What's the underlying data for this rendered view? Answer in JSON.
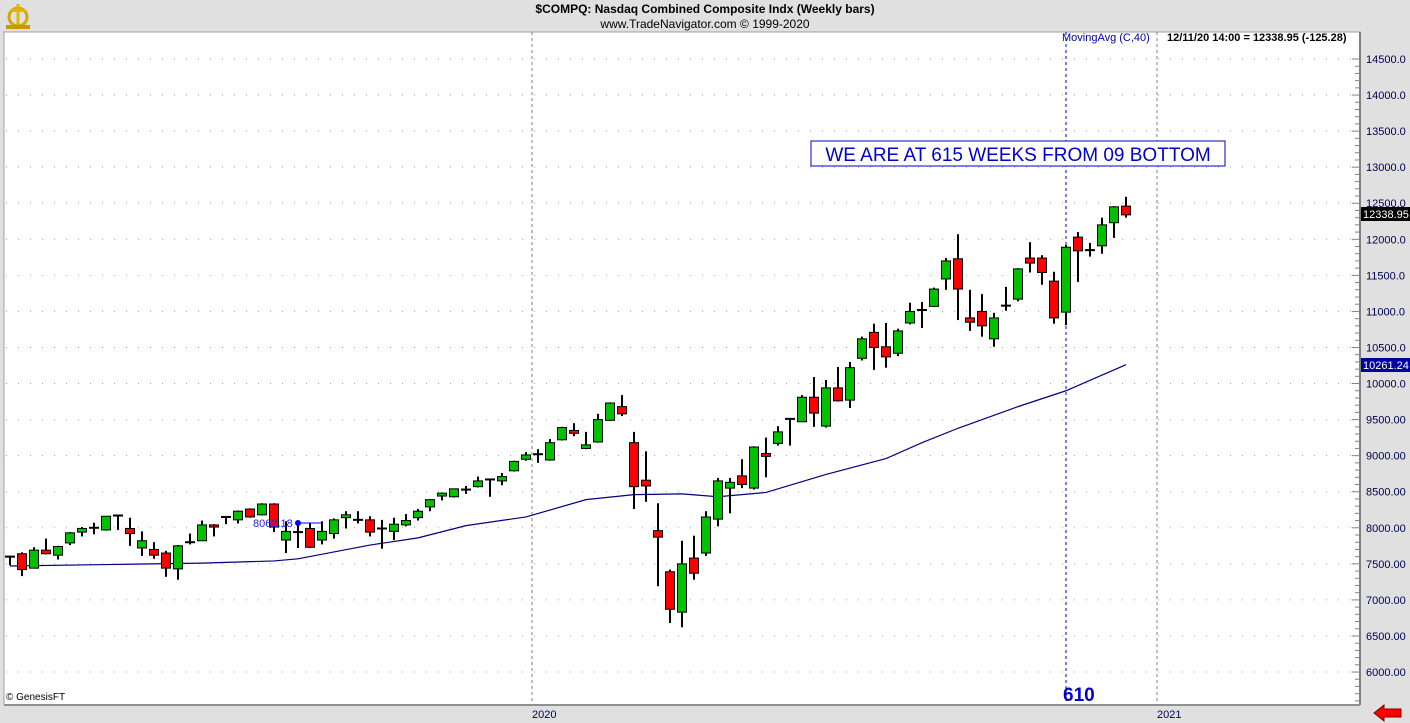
{
  "header": {
    "title": "$COMPQ:  Nasdaq Combined Composite Indx  (Weekly bars)",
    "subtitle": "www.TradeNavigator.com © 1999-2020",
    "logo": "anchor-compass-logo"
  },
  "indicator_label": "MovingAvg (C,40)",
  "last_bar_readout": "12/11/20 14:00 = 12338.95 (-125.28)",
  "annotation_box": "WE ARE AT 615 WEEKS FROM 09 BOTTOM",
  "marker_label": "610",
  "high_marker_label": "8062.18",
  "footer_credit": "© GenesisFT",
  "price_tags": {
    "last_close": "12338.95",
    "moving_average": "10261.24"
  },
  "colors": {
    "up": "#00c000",
    "down": "#ff0000",
    "ma": "#000080",
    "annotation": "#0000c8",
    "tag_ma_bg": "#0000a0",
    "tag_close_bg": "#000000"
  },
  "chart_data": {
    "type": "candlestick",
    "title": "$COMPQ:  Nasdaq Combined Composite Indx  (Weekly bars)",
    "xlabel": "",
    "ylabel": "",
    "ylim": [
      5800,
      14800
    ],
    "grid": true,
    "x_tick_labels": [
      "2020",
      "2021"
    ],
    "y_tick_labels": [
      "14500.0",
      "14000.0",
      "13500.0",
      "13000.0",
      "12500.0",
      "12000.0",
      "11500.0",
      "11000.0",
      "10500.0",
      "10000.0",
      "9500.00",
      "9000.00",
      "8500.00",
      "8000.00",
      "7500.00",
      "7000.00",
      "6500.00",
      "6000.00"
    ],
    "y_tick_values": [
      14500,
      14000,
      13500,
      13000,
      12500,
      12000,
      11500,
      11000,
      10500,
      10000,
      9500,
      9000,
      8500,
      8000,
      7500,
      7000,
      6500,
      6000
    ],
    "last_bar_date": "12/11/20",
    "ohlc_fields": [
      "open",
      "high",
      "low",
      "close"
    ],
    "candles": [
      [
        7590,
        7610,
        7480,
        7600
      ],
      [
        7640,
        7660,
        7330,
        7420
      ],
      [
        7440,
        7730,
        7440,
        7690
      ],
      [
        7690,
        7850,
        7630,
        7640
      ],
      [
        7620,
        7750,
        7560,
        7740
      ],
      [
        7790,
        7940,
        7760,
        7930
      ],
      [
        7940,
        8010,
        7880,
        7990
      ],
      [
        7990,
        8070,
        7910,
        8000
      ],
      [
        7970,
        8160,
        7960,
        8160
      ],
      [
        8160,
        8180,
        7970,
        8170
      ],
      [
        7990,
        8140,
        7750,
        7920
      ],
      [
        7720,
        7950,
        7610,
        7820
      ],
      [
        7700,
        7800,
        7570,
        7620
      ],
      [
        7650,
        7680,
        7320,
        7440
      ],
      [
        7430,
        7760,
        7280,
        7750
      ],
      [
        7790,
        7920,
        7770,
        7800
      ],
      [
        7820,
        8100,
        7820,
        8040
      ],
      [
        8040,
        8050,
        7880,
        8010
      ],
      [
        8140,
        8160,
        8050,
        8150
      ],
      [
        8110,
        8240,
        8060,
        8230
      ],
      [
        8260,
        8270,
        8140,
        8150
      ],
      [
        8180,
        8340,
        8170,
        8330
      ],
      [
        8330,
        8340,
        7940,
        8010
      ],
      [
        7830,
        8090,
        7650,
        7950
      ],
      [
        7930,
        8062.18,
        7720,
        7940
      ],
      [
        7990,
        8060,
        7720,
        7730
      ],
      [
        7830,
        8090,
        7770,
        7950
      ],
      [
        7920,
        8130,
        7850,
        8110
      ],
      [
        8140,
        8230,
        7990,
        8180
      ],
      [
        8110,
        8230,
        8060,
        8100
      ],
      [
        8110,
        8160,
        7880,
        7940
      ],
      [
        7980,
        8110,
        7710,
        7990
      ],
      [
        7950,
        8140,
        7830,
        8050
      ],
      [
        8040,
        8190,
        8020,
        8100
      ],
      [
        8140,
        8260,
        8100,
        8230
      ],
      [
        8290,
        8400,
        8230,
        8390
      ],
      [
        8440,
        8490,
        8380,
        8480
      ],
      [
        8430,
        8540,
        8420,
        8540
      ],
      [
        8520,
        8580,
        8470,
        8530
      ],
      [
        8570,
        8710,
        8560,
        8650
      ],
      [
        8660,
        8680,
        8430,
        8670
      ],
      [
        8650,
        8760,
        8590,
        8710
      ],
      [
        8790,
        8930,
        8780,
        8920
      ],
      [
        8950,
        9050,
        8930,
        9010
      ],
      [
        9010,
        9090,
        8900,
        9020
      ],
      [
        8940,
        9230,
        8930,
        9180
      ],
      [
        9220,
        9400,
        9210,
        9390
      ],
      [
        9350,
        9450,
        9270,
        9310
      ],
      [
        9100,
        9330,
        9090,
        9150
      ],
      [
        9190,
        9580,
        9180,
        9500
      ],
      [
        9490,
        9740,
        9480,
        9730
      ],
      [
        9680,
        9840,
        9550,
        9580
      ],
      [
        9180,
        9330,
        8260,
        8570
      ],
      [
        8660,
        9060,
        8360,
        8580
      ],
      [
        7960,
        8340,
        7190,
        7870
      ],
      [
        7390,
        7420,
        6680,
        6870
      ],
      [
        6830,
        7820,
        6620,
        7500
      ],
      [
        7580,
        7890,
        7280,
        7370
      ],
      [
        7650,
        8230,
        7610,
        8150
      ],
      [
        8120,
        8690,
        8020,
        8650
      ],
      [
        8550,
        8690,
        8200,
        8630
      ],
      [
        8720,
        8950,
        8550,
        8600
      ],
      [
        8550,
        9130,
        8530,
        9120
      ],
      [
        9030,
        9250,
        8700,
        8990
      ],
      [
        9170,
        9410,
        9140,
        9330
      ],
      [
        9500,
        9520,
        9140,
        9510
      ],
      [
        9470,
        9840,
        9470,
        9810
      ],
      [
        9810,
        10090,
        9400,
        9590
      ],
      [
        9410,
        10050,
        9390,
        9940
      ],
      [
        9940,
        10230,
        9750,
        9760
      ],
      [
        9770,
        10300,
        9660,
        10220
      ],
      [
        10350,
        10650,
        10320,
        10620
      ],
      [
        10710,
        10830,
        10190,
        10500
      ],
      [
        10510,
        10840,
        10220,
        10370
      ],
      [
        10420,
        10760,
        10380,
        10730
      ],
      [
        10840,
        11120,
        10820,
        11000
      ],
      [
        11010,
        11130,
        10770,
        11020
      ],
      [
        11070,
        11330,
        11060,
        11310
      ],
      [
        11450,
        11740,
        11300,
        11700
      ],
      [
        11730,
        12070,
        10880,
        11310
      ],
      [
        10910,
        11300,
        10730,
        10850
      ],
      [
        11000,
        11240,
        10650,
        10800
      ],
      [
        10620,
        10980,
        10510,
        10910
      ],
      [
        11070,
        11340,
        11010,
        11080
      ],
      [
        11170,
        11600,
        11140,
        11590
      ],
      [
        11740,
        11960,
        11540,
        11670
      ],
      [
        11740,
        11780,
        11370,
        11540
      ],
      [
        11420,
        11550,
        10830,
        10910
      ],
      [
        10990,
        11920,
        10810,
        11890
      ],
      [
        12030,
        12100,
        11410,
        11840
      ],
      [
        11830,
        11950,
        11760,
        11850
      ],
      [
        11910,
        12300,
        11800,
        12200
      ],
      [
        12230,
        12460,
        12020,
        12450
      ],
      [
        12460,
        12590,
        12300,
        12338.95
      ]
    ],
    "moving_average": {
      "name": "MovingAvg (C,40)",
      "points_bar_index_value": [
        [
          0,
          7470
        ],
        [
          8,
          7490
        ],
        [
          16,
          7510
        ],
        [
          22,
          7540
        ],
        [
          24,
          7570
        ],
        [
          30,
          7760
        ],
        [
          34,
          7860
        ],
        [
          38,
          8030
        ],
        [
          43,
          8150
        ],
        [
          48,
          8390
        ],
        [
          52,
          8460
        ],
        [
          56,
          8470
        ],
        [
          59,
          8430
        ],
        [
          63,
          8490
        ],
        [
          68,
          8740
        ],
        [
          73,
          8960
        ],
        [
          76,
          9180
        ],
        [
          79,
          9380
        ],
        [
          84,
          9680
        ],
        [
          88,
          9900
        ],
        [
          93,
          10261.24
        ]
      ]
    },
    "marker_bar_index": 88
  }
}
